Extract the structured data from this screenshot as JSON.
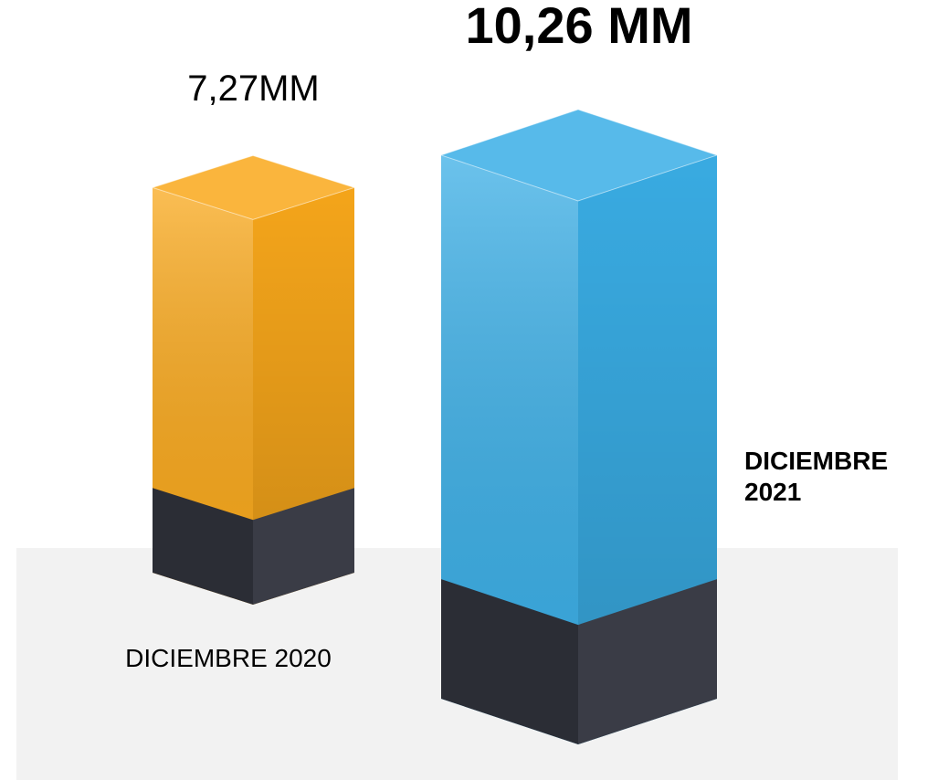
{
  "chart_data": {
    "type": "bar",
    "categories": [
      "DICIEMBRE 2020",
      "DICIEMBRE 2021"
    ],
    "values": [
      7.27,
      10.26
    ],
    "value_labels": [
      "7,27MM",
      "10,26 MM"
    ],
    "colors": [
      "#f9a81b",
      "#3aaee6"
    ]
  }
}
